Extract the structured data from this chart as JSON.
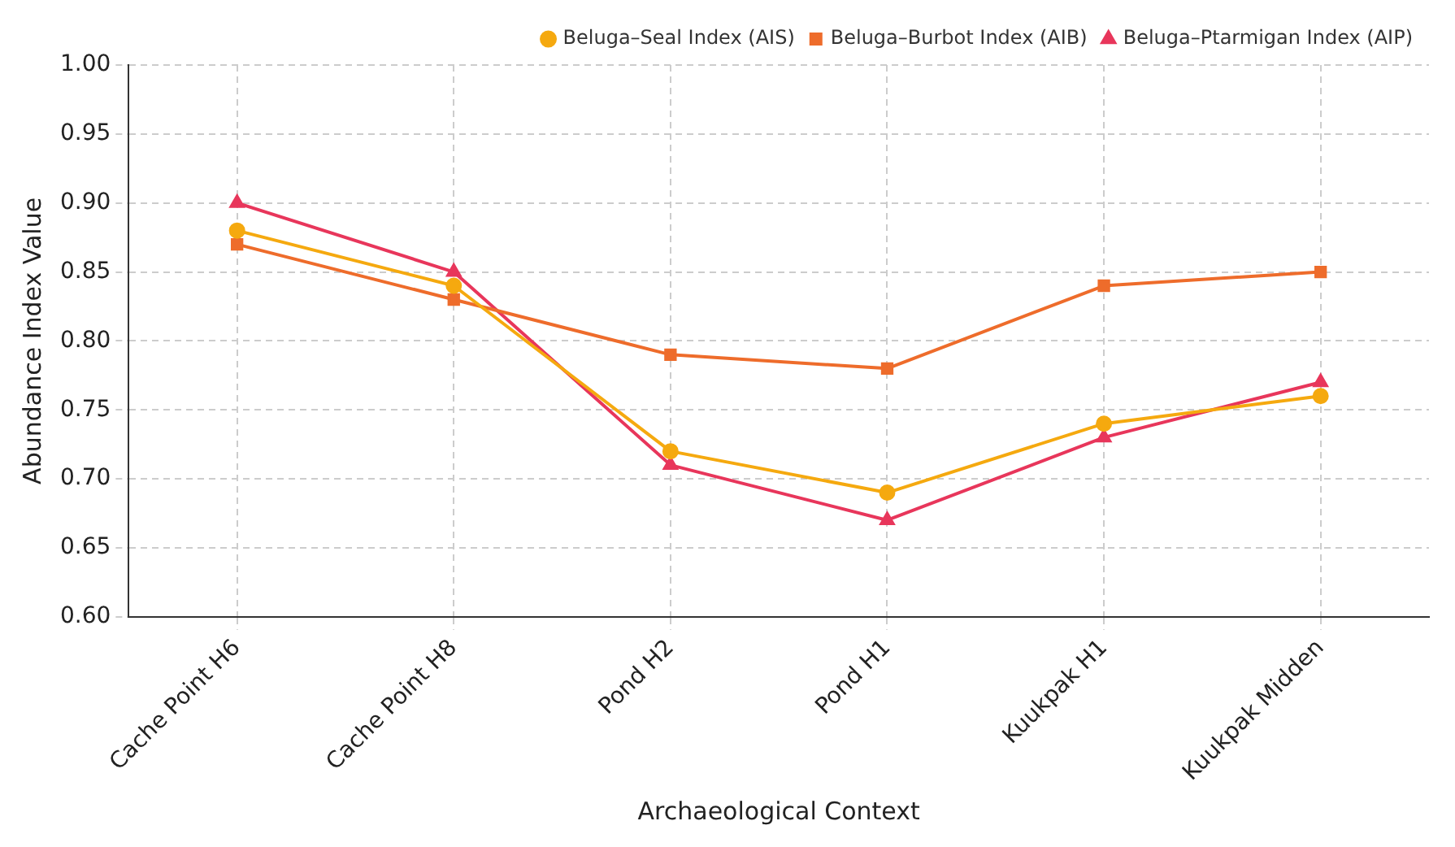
{
  "chart_data": {
    "type": "line",
    "xlabel": "Archaeological Context",
    "ylabel": "Abundance Index Value",
    "categories": [
      "Cache Point H6",
      "Cache Point H8",
      "Pond H2",
      "Pond H1",
      "Kuukpak H1",
      "Kuukpak Midden"
    ],
    "series": [
      {
        "name": "Beluga–Seal Index (AIS)",
        "color": "#f5a90f",
        "marker": "circle",
        "values": [
          0.88,
          0.84,
          0.72,
          0.69,
          0.74,
          0.76
        ]
      },
      {
        "name": "Beluga–Burbot Index (AIB)",
        "color": "#ee6c2b",
        "marker": "square",
        "values": [
          0.87,
          0.83,
          0.79,
          0.78,
          0.84,
          0.85
        ]
      },
      {
        "name": "Beluga–Ptarmigan Index (AIP)",
        "color": "#e8365b",
        "marker": "triangle",
        "values": [
          0.9,
          0.85,
          0.71,
          0.67,
          0.73,
          0.77
        ]
      }
    ],
    "ylim": [
      0.6,
      1.0
    ],
    "yticks": [
      {
        "value": 0.6,
        "label": "0.60"
      },
      0.65,
      {
        "value": 0.7,
        "label": "0.70"
      },
      0.75,
      {
        "value": 0.8,
        "label": "0.80"
      },
      0.85,
      {
        "value": 0.9,
        "label": "0.90"
      },
      0.95,
      {
        "value": 1.0,
        "label": "1.00"
      }
    ],
    "grid": true,
    "legend": "top right",
    "line_style": "solid"
  }
}
